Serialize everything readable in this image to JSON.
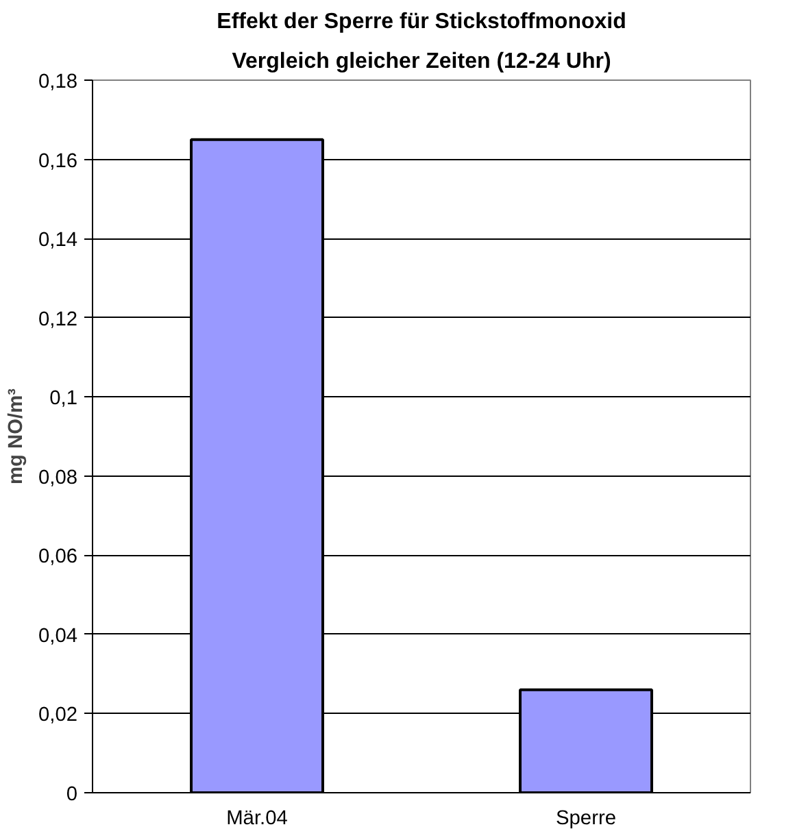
{
  "chart_data": {
    "type": "bar",
    "title": "Effekt der Sperre für Stickstoffmonoxid",
    "subtitle": "Vergleich gleicher Zeiten (12-24 Uhr)",
    "ylabel": "mg NO/m³",
    "categories": [
      "Mär.04",
      "Sperre"
    ],
    "values": [
      0.165,
      0.026
    ],
    "color": "#9999ff",
    "ylim": [
      0,
      0.18
    ],
    "yticks": [
      0,
      {
        "value": 0.02,
        "label": "0,02"
      },
      {
        "value": 0.04,
        "label": "0,04"
      },
      {
        "value": 0.06,
        "label": "0,06"
      },
      {
        "value": 0.08,
        "label": "0,08"
      },
      {
        "value": 0.1,
        "label": "0,1"
      },
      {
        "value": 0.12,
        "label": "0,12"
      },
      {
        "value": 0.14,
        "label": "0,14"
      },
      {
        "value": 0.16,
        "label": "0,16"
      },
      {
        "value": 0.18,
        "label": "0,18"
      }
    ],
    "grid": "y"
  }
}
